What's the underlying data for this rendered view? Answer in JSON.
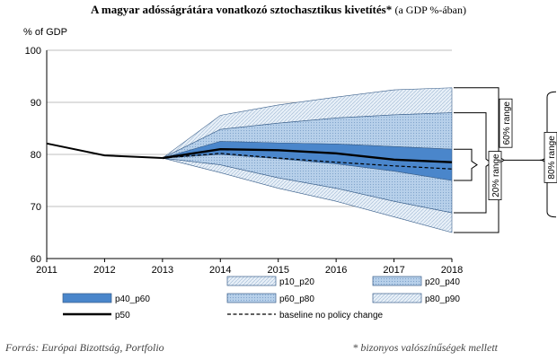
{
  "header": {
    "title": "A magyar adósságrátára vonatkozó sztochasztikus kivetítés*",
    "subtitle": "(a GDP %-ában)"
  },
  "footer": {
    "source": "Forrás: Európai Bizottság, Portfolio",
    "note": "* bizonyos valószínűségek mellett"
  },
  "colors": {
    "band_outer": "#e2ecf6",
    "band_mid": "#b9d3ec",
    "band_inner": "#4a86cb",
    "line": "#000000",
    "hatch": "#9ab3cf"
  },
  "chart_data": {
    "type": "area",
    "title": "A magyar adósságrátára vonatkozó sztochasztikus kivetítés* (a GDP %-ában)",
    "ylabel": "% of GDP",
    "xlabel": "",
    "ylim": [
      60,
      100
    ],
    "yticks": [
      60,
      70,
      80,
      90,
      100
    ],
    "x": [
      2011,
      2012,
      2013,
      2014,
      2015,
      2016,
      2017,
      2018
    ],
    "grid": true,
    "history": {
      "x": [
        2011,
        2012,
        2013
      ],
      "values": [
        82.1,
        79.8,
        79.3
      ]
    },
    "bands": {
      "p10": [
        null,
        null,
        79.3,
        76.5,
        73.5,
        71.0,
        68.0,
        65.0
      ],
      "p20": [
        null,
        null,
        79.3,
        78.0,
        75.5,
        73.5,
        71.0,
        68.8
      ],
      "p40": [
        null,
        null,
        79.3,
        80.0,
        79.2,
        78.2,
        76.8,
        75.0
      ],
      "p60": [
        null,
        null,
        79.3,
        82.5,
        82.2,
        82.0,
        81.5,
        81.0
      ],
      "p80": [
        null,
        null,
        79.3,
        84.8,
        86.0,
        87.0,
        87.6,
        88.0
      ],
      "p90": [
        null,
        null,
        79.3,
        87.5,
        89.5,
        91.0,
        92.4,
        92.8
      ]
    },
    "series": [
      {
        "name": "p50",
        "values": [
          null,
          null,
          79.3,
          81.0,
          80.8,
          80.2,
          79.0,
          78.5
        ]
      },
      {
        "name": "baseline no policy change",
        "values": [
          null,
          null,
          79.3,
          80.2,
          79.3,
          78.5,
          77.8,
          77.2
        ]
      }
    ],
    "legend": {
      "position": "bottom",
      "items": [
        "p10_p20",
        "p20_p40",
        "p40_p60",
        "p60_p80",
        "p80_p90",
        "p50",
        "baseline no policy change"
      ]
    },
    "annotations": [
      "20% range",
      "60% range",
      "80% range"
    ]
  }
}
